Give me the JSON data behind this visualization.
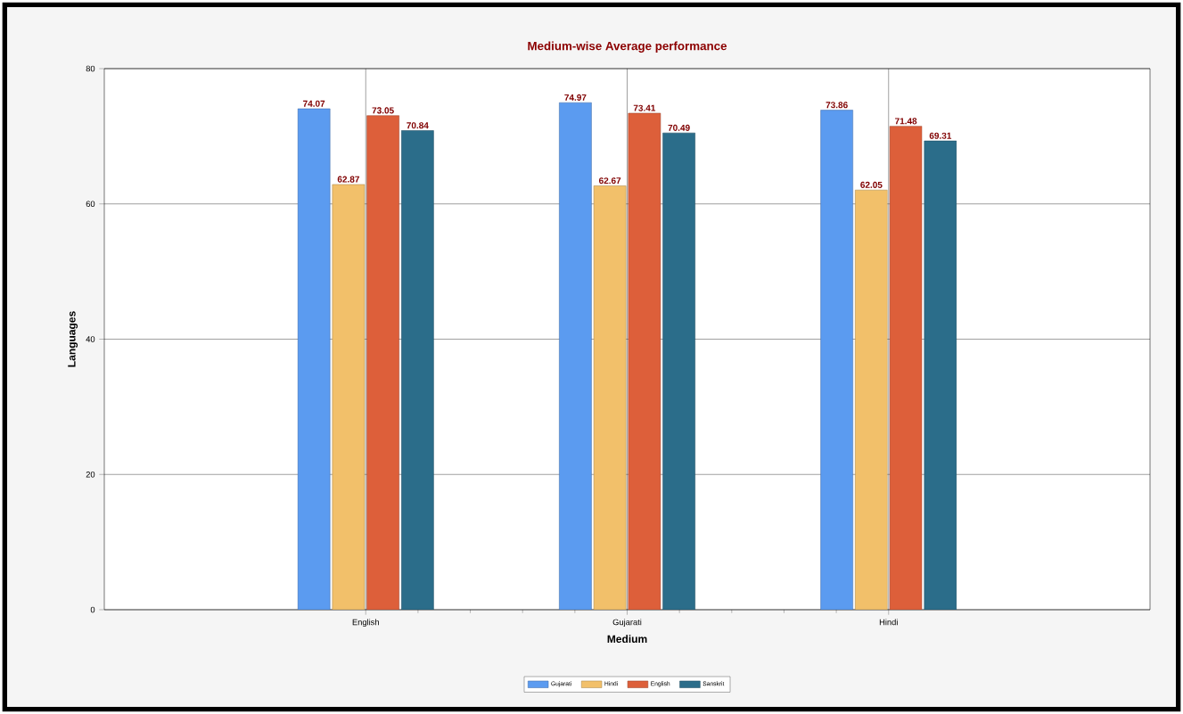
{
  "chart_data": {
    "type": "bar",
    "title": "Medium-wise Average performance",
    "xlabel": "Medium",
    "ylabel": "Languages",
    "categories": [
      "English",
      "Gujarati",
      "Hindi"
    ],
    "series": [
      {
        "name": "Gujarati",
        "color": "#5b9bf0",
        "values": [
          74.07,
          74.97,
          73.86
        ]
      },
      {
        "name": "Hindi",
        "color": "#f2c06a",
        "values": [
          62.87,
          62.67,
          62.05
        ]
      },
      {
        "name": "English",
        "color": "#dd5f3a",
        "values": [
          73.05,
          73.41,
          71.48
        ]
      },
      {
        "name": "Sanskrit",
        "color": "#2b6d8a",
        "values": [
          70.84,
          70.49,
          69.31
        ]
      }
    ],
    "ylim": [
      0,
      80
    ],
    "yticks": [
      0,
      20,
      40,
      60,
      80
    ],
    "grid": true,
    "legend": "bottom",
    "data_labels": true
  }
}
